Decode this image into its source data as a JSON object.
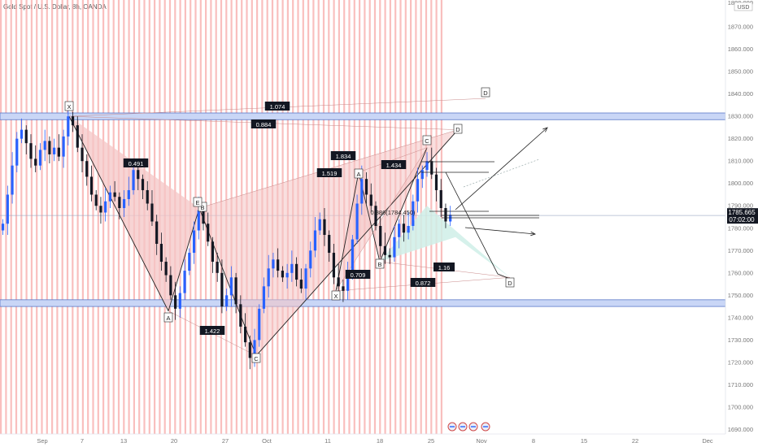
{
  "title": "Gold Spot / U.S. Dollar, 8h, OANDA",
  "currency": "USD",
  "price_tag": {
    "price": "1785.665",
    "countdown": "07:02:00"
  },
  "colors": {
    "up": "#2962ff",
    "down": "#131722",
    "stripe": "#f7a9a8",
    "pattern_red": "#f4c5c5",
    "pattern_green": "#cfeee8",
    "zone": "#c9d6f6",
    "zone_border": "#5a78c8"
  },
  "chart_data": {
    "type": "candlestick",
    "title": "Gold Spot / U.S. Dollar, 8h, OANDA",
    "ylim": [
      1688,
      1882
    ],
    "y_ticks": [
      1690,
      1700,
      1710,
      1720,
      1730,
      1740,
      1750,
      1760,
      1770,
      1780,
      1790,
      1800,
      1810,
      1820,
      1830,
      1840,
      1850,
      1860,
      1870
    ],
    "y_tick_labels": [
      "1690.000",
      "1700.000",
      "1710.000",
      "1720.000",
      "1730.000",
      "1740.000",
      "1750.000",
      "1760.000",
      "1770.000",
      "1780.000",
      "1790.000",
      "1800.000",
      "1810.000",
      "1820.000",
      "1830.000",
      "1840.000",
      "1850.000",
      "1860.000",
      "1870.000"
    ],
    "x_labels": [
      "Sep",
      "7",
      "13",
      "20",
      "27",
      "Oct",
      "11",
      "18",
      "25",
      "Nov",
      "8",
      "15",
      "22",
      "Dec"
    ],
    "close_series": [
      1782,
      1795,
      1808,
      1820,
      1824,
      1818,
      1811,
      1808,
      1815,
      1819,
      1813,
      1816,
      1812,
      1821,
      1830,
      1826,
      1816,
      1810,
      1803,
      1795,
      1790,
      1787,
      1792,
      1796,
      1794,
      1789,
      1793,
      1797,
      1806,
      1802,
      1797,
      1791,
      1783,
      1773,
      1765,
      1759,
      1750,
      1744,
      1751,
      1761,
      1769,
      1779,
      1788,
      1782,
      1774,
      1765,
      1760,
      1745,
      1750,
      1758,
      1746,
      1736,
      1729,
      1722,
      1730,
      1744,
      1754,
      1762,
      1766,
      1761,
      1758,
      1760,
      1764,
      1757,
      1753,
      1762,
      1770,
      1779,
      1784,
      1777,
      1769,
      1758,
      1754,
      1752,
      1760,
      1775,
      1791,
      1802,
      1795,
      1790,
      1781,
      1772,
      1768,
      1767,
      1776,
      1782,
      1778,
      1781,
      1792,
      1802,
      1806,
      1810,
      1804,
      1797,
      1789,
      1783,
      1786
    ],
    "horizontal_zones": [
      [
        1828.5,
        1831.5
      ],
      [
        1745,
        1748
      ]
    ],
    "pattern_points": [
      {
        "label": "X",
        "value": 1830
      },
      {
        "label": "A",
        "value": 1743
      },
      {
        "label": "B",
        "value": 1789
      },
      {
        "label": "C",
        "value": 1723
      },
      {
        "label": "X",
        "value": 1752
      },
      {
        "label": "A",
        "value": 1805
      },
      {
        "label": "B",
        "value": 1765
      },
      {
        "label": "C",
        "value": 1816
      },
      {
        "label": "D",
        "value": 1758
      },
      {
        "label": "D",
        "value": 1838
      },
      {
        "label": "D",
        "value": 1824
      },
      {
        "label": "E",
        "value": 1789
      }
    ],
    "ratio_labels": [
      "1.074",
      "0.884",
      "0.491",
      "1.834",
      "1.519",
      "1.434",
      "1.422",
      "0.709",
      "0.872",
      "1.16"
    ],
    "retracement_label": "0.886(1784.450)",
    "grid": false
  }
}
